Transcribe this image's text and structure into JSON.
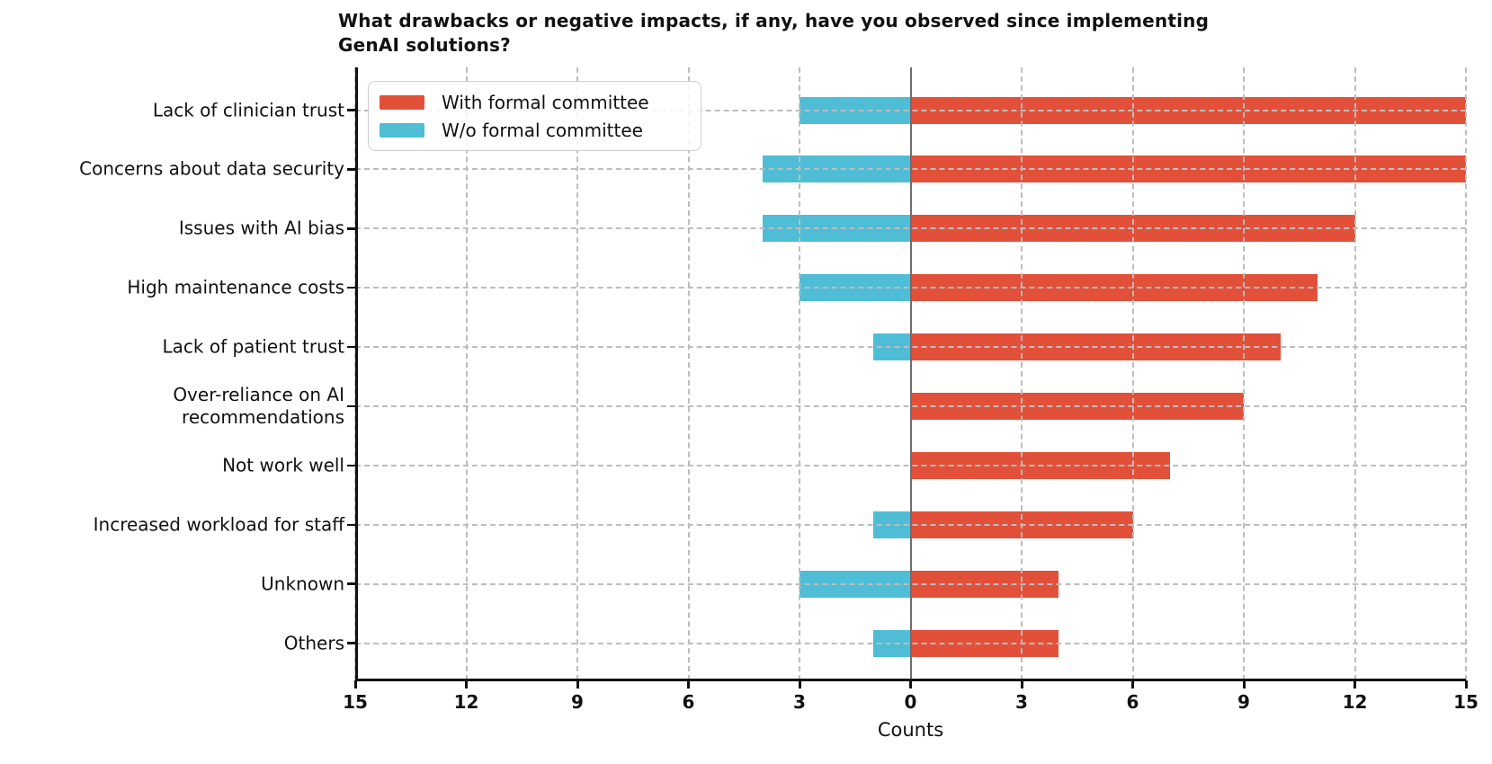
{
  "colors": {
    "series_with_committee": "#E2503A",
    "series_without_committee": "#4FBDD6",
    "grid": "#bdbdbd",
    "zero_line": "#6e6e6e",
    "spine": "#111111",
    "text": "#111111",
    "legend_border": "#cfcfcf"
  },
  "chart_data": {
    "type": "bar",
    "variant": "diverging-horizontal",
    "title": "What drawbacks or negative impacts, if any, have you observed since implementing\nGenAI solutions?",
    "xlabel": "Counts",
    "categories": [
      "Lack of clinician trust",
      "Concerns about data security",
      "Issues with AI bias",
      "High maintenance costs",
      "Lack of patient trust",
      "Over-reliance on AI\nrecommendations",
      "Not work well",
      "Increased workload for staff",
      "Unknown",
      "Others"
    ],
    "series": [
      {
        "name": "With formal committee",
        "color": "#E2503A",
        "direction": "right",
        "values": [
          15,
          15,
          12,
          11,
          10,
          9,
          7,
          6,
          4,
          4
        ]
      },
      {
        "name": "W/o formal committee",
        "color": "#4FBDD6",
        "direction": "left",
        "values": [
          3,
          4,
          4,
          3,
          1,
          0,
          0,
          1,
          3,
          1
        ]
      }
    ],
    "xlim": [
      -15,
      15
    ],
    "xticks": [
      -15,
      -12,
      -9,
      -6,
      -3,
      0,
      3,
      6,
      9,
      12,
      15
    ],
    "xtick_labels": [
      "15",
      "12",
      "9",
      "6",
      "3",
      "0",
      "3",
      "6",
      "9",
      "12",
      "15"
    ],
    "grid": true,
    "grid_style": "dashed",
    "legend_position": "upper left"
  }
}
